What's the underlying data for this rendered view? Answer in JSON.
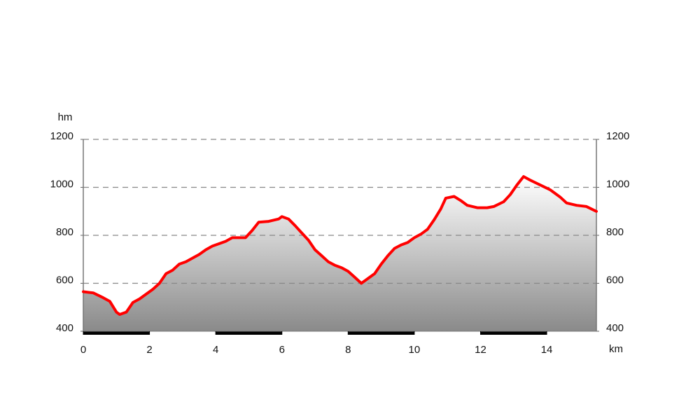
{
  "chart_data": {
    "type": "area",
    "ylabel": "hm",
    "xlabel": "km",
    "x": [
      0,
      0.3,
      0.6,
      0.8,
      1.0,
      1.1,
      1.3,
      1.5,
      1.7,
      1.9,
      2.1,
      2.3,
      2.5,
      2.7,
      2.9,
      3.1,
      3.3,
      3.5,
      3.7,
      3.9,
      4.1,
      4.3,
      4.5,
      4.7,
      4.9,
      5.1,
      5.3,
      5.6,
      5.9,
      6.0,
      6.2,
      6.4,
      6.6,
      6.8,
      7.0,
      7.2,
      7.4,
      7.6,
      7.8,
      8.0,
      8.2,
      8.4,
      8.6,
      8.8,
      9.0,
      9.2,
      9.4,
      9.6,
      9.8,
      10.0,
      10.2,
      10.4,
      10.6,
      10.8,
      10.95,
      11.2,
      11.4,
      11.6,
      11.9,
      12.2,
      12.4,
      12.7,
      12.9,
      13.1,
      13.3,
      13.5,
      13.8,
      14.1,
      14.4,
      14.6,
      14.9,
      15.2,
      15.5
    ],
    "series": [
      {
        "color": "#ff0000",
        "values": [
          565,
          560,
          540,
          525,
          480,
          470,
          480,
          520,
          535,
          555,
          575,
          600,
          640,
          655,
          680,
          690,
          705,
          720,
          740,
          755,
          765,
          775,
          790,
          790,
          790,
          820,
          855,
          858,
          868,
          878,
          868,
          840,
          810,
          780,
          740,
          715,
          690,
          675,
          665,
          650,
          625,
          600,
          620,
          640,
          680,
          715,
          745,
          760,
          770,
          790,
          805,
          825,
          865,
          910,
          955,
          962,
          945,
          925,
          915,
          915,
          920,
          940,
          970,
          1010,
          1045,
          1030,
          1010,
          990,
          960,
          935,
          925,
          920,
          900
        ]
      }
    ],
    "xlim": [
      0,
      15.5
    ],
    "xticks": [
      0,
      2,
      4,
      6,
      8,
      10,
      12,
      14
    ],
    "ylim": [
      400,
      1200
    ],
    "yticks": [
      400,
      600,
      800,
      1000,
      1200
    ],
    "y2lim": [
      400,
      1200
    ],
    "y2ticks": [
      400,
      600,
      800,
      1000,
      1200
    ],
    "grid": true
  }
}
